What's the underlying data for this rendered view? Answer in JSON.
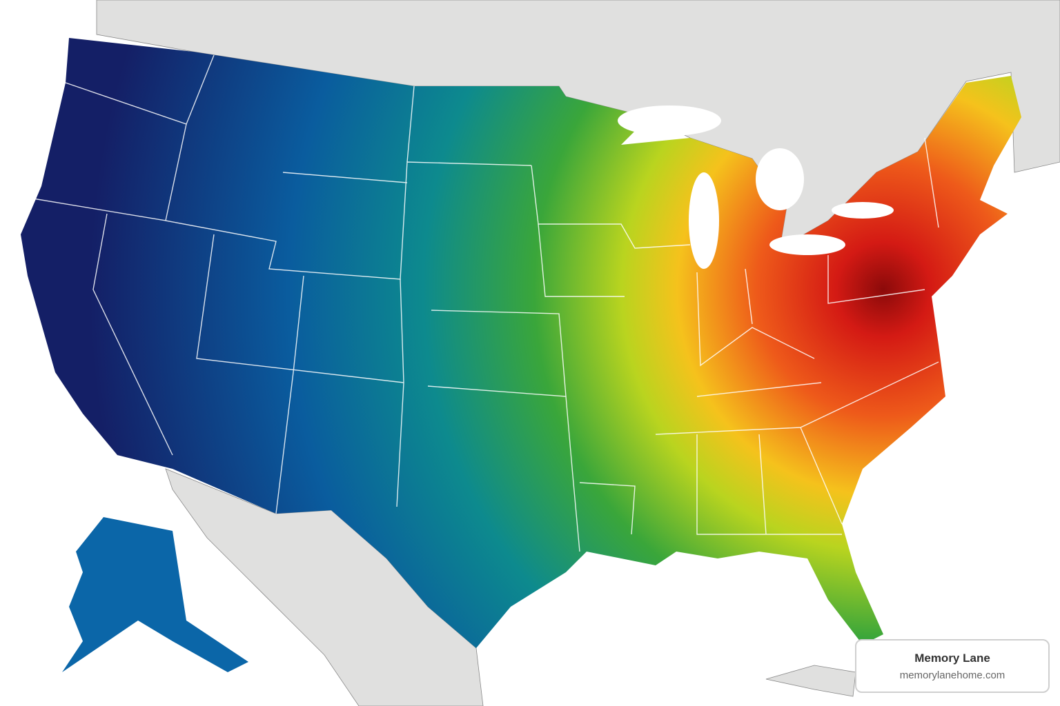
{
  "attribution": {
    "title": "Memory Lane",
    "url": "memorylanehome.com"
  }
}
